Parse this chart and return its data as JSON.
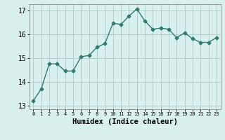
{
  "x": [
    0,
    1,
    2,
    3,
    4,
    5,
    6,
    7,
    8,
    9,
    10,
    11,
    12,
    13,
    14,
    15,
    16,
    17,
    18,
    19,
    20,
    21,
    22,
    23
  ],
  "y": [
    13.2,
    13.7,
    14.75,
    14.75,
    14.45,
    14.45,
    15.05,
    15.1,
    15.45,
    15.6,
    16.45,
    16.4,
    16.75,
    17.05,
    16.55,
    16.2,
    16.25,
    16.2,
    15.85,
    16.05,
    15.8,
    15.65,
    15.65,
    15.85
  ],
  "line_color": "#2e7d6e",
  "marker": "D",
  "marker_size": 2.5,
  "background_color": "#d8f0ee",
  "grid_color": "#b0ceca",
  "xlabel": "Humidex (Indice chaleur)",
  "xlim": [
    -0.5,
    23.5
  ],
  "ylim": [
    12.85,
    17.25
  ],
  "yticks": [
    13,
    14,
    15,
    16,
    17
  ],
  "xticks": [
    0,
    1,
    2,
    3,
    4,
    5,
    6,
    7,
    8,
    9,
    10,
    11,
    12,
    13,
    14,
    15,
    16,
    17,
    18,
    19,
    20,
    21,
    22,
    23
  ],
  "xlabel_fontsize": 7.5,
  "ytick_fontsize": 7.0,
  "xtick_fontsize": 5.0,
  "line_width": 1.0
}
